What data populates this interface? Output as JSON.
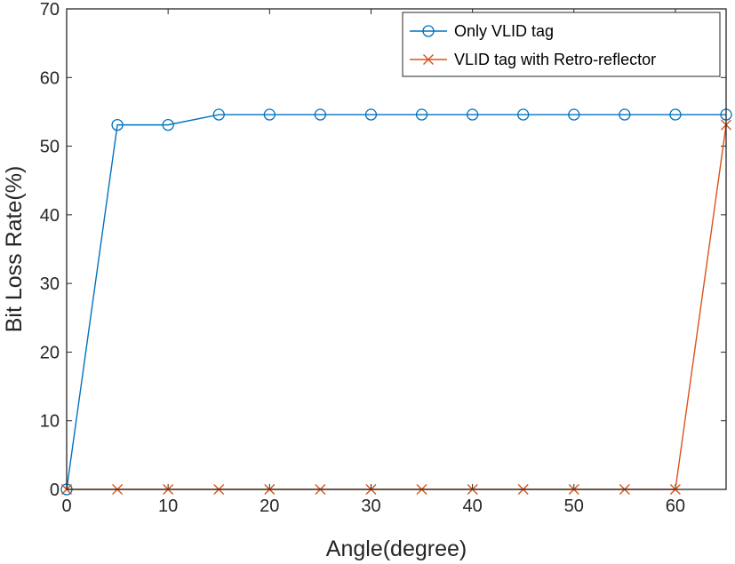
{
  "chart_data": {
    "type": "line",
    "title": "",
    "xlabel": "Angle(degree)",
    "ylabel": "Bit Loss Rate(%)",
    "xlim": [
      0,
      65
    ],
    "ylim": [
      0,
      70
    ],
    "xticks": [
      0,
      10,
      20,
      30,
      40,
      50,
      60
    ],
    "yticks": [
      0,
      10,
      20,
      30,
      40,
      50,
      60,
      70
    ],
    "grid": false,
    "legend_position": "top-right",
    "x": [
      0,
      5,
      10,
      15,
      20,
      25,
      30,
      35,
      40,
      45,
      50,
      55,
      60,
      65
    ],
    "series": [
      {
        "name": "Only VLID tag",
        "color": "#0072BD",
        "marker": "circle",
        "values": [
          0,
          53.1,
          53.1,
          54.6,
          54.6,
          54.6,
          54.6,
          54.6,
          54.6,
          54.6,
          54.6,
          54.6,
          54.6,
          54.6
        ]
      },
      {
        "name": "VLID tag with Retro-reflector",
        "color": "#D95319",
        "marker": "x",
        "values": [
          0,
          0,
          0,
          0,
          0,
          0,
          0,
          0,
          0,
          0,
          0,
          0,
          0,
          53.1
        ]
      }
    ]
  }
}
